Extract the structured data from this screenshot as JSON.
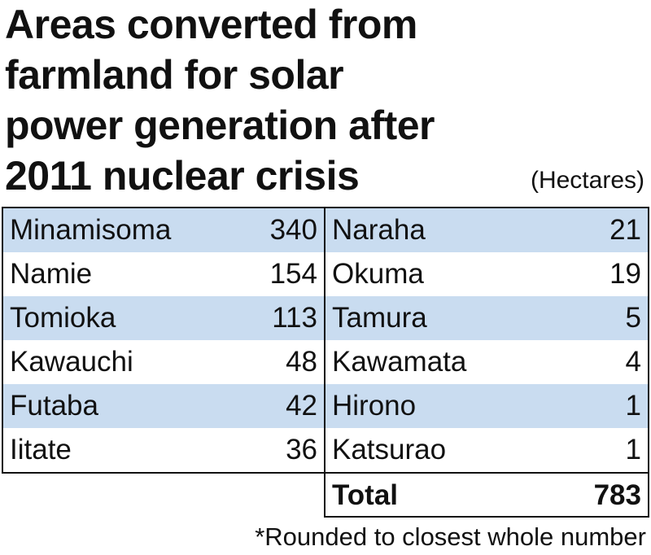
{
  "title_lines": [
    "Areas converted from",
    "farmland for solar",
    "power generation after",
    "2011 nuclear crisis"
  ],
  "unit": "(Hectares)",
  "table": {
    "left": [
      [
        "Minamisoma",
        340
      ],
      [
        "Namie",
        154
      ],
      [
        "Tomioka",
        113
      ],
      [
        "Kawauchi",
        48
      ],
      [
        "Futaba",
        42
      ],
      [
        "Iitate",
        36
      ]
    ],
    "right": [
      [
        "Naraha",
        21
      ],
      [
        "Okuma",
        19
      ],
      [
        "Tamura",
        5
      ],
      [
        "Kawamata",
        4
      ],
      [
        "Hirono",
        1
      ],
      [
        "Katsurao",
        1
      ]
    ],
    "total": [
      "Total",
      783
    ]
  },
  "footnote": "*Rounded to closest whole number"
}
